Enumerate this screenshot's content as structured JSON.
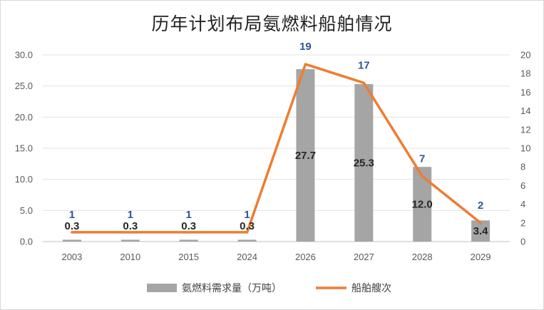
{
  "chart_data": {
    "type": "bar+line",
    "title": "历年计划布局氨燃料船舶情况",
    "categories": [
      "2003",
      "2010",
      "2015",
      "2024",
      "2026",
      "2027",
      "2028",
      "2029"
    ],
    "series": [
      {
        "name": "氨燃料需求量（万吨）",
        "type": "bar",
        "axis": "left",
        "color": "#a5a5a5",
        "values": [
          0.3,
          0.3,
          0.3,
          0.3,
          27.7,
          25.3,
          12.0,
          3.4
        ],
        "labels": [
          "0.3",
          "0.3",
          "0.3",
          "0.3",
          "27.7",
          "25.3",
          "12.0",
          "3.4"
        ]
      },
      {
        "name": "船舶艘次",
        "type": "line",
        "axis": "right",
        "color": "#ed7d31",
        "values": [
          1,
          1,
          1,
          1,
          19,
          17,
          7,
          2
        ],
        "labels": [
          "1",
          "1",
          "1",
          "1",
          "19",
          "17",
          "7",
          "2"
        ]
      }
    ],
    "y_left": {
      "min": 0,
      "max": 30,
      "step": 5,
      "ticks": [
        "0.0",
        "5.0",
        "10.0",
        "15.0",
        "20.0",
        "25.0",
        "30.0"
      ]
    },
    "y_right": {
      "min": 0,
      "max": 20,
      "step": 2,
      "ticks": [
        "0",
        "2",
        "4",
        "6",
        "8",
        "10",
        "12",
        "14",
        "16",
        "18",
        "20"
      ]
    },
    "grid": true,
    "legend": "bottom"
  }
}
